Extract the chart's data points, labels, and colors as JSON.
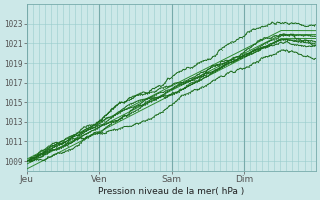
{
  "xlabel": "Pression niveau de la mer( hPa )",
  "bg_color": "#cce8e8",
  "grid_color": "#99cccc",
  "line_color_dark": "#1a6b1a",
  "line_color_med": "#2d8b2d",
  "ymin": 1008.0,
  "ymax": 1025.0,
  "yticks": [
    1009,
    1011,
    1013,
    1015,
    1017,
    1019,
    1021,
    1023
  ],
  "day_labels": [
    "Jeu",
    "Ven",
    "Sam",
    "Dim"
  ],
  "day_positions": [
    0,
    96,
    192,
    288
  ],
  "total_points": 384
}
